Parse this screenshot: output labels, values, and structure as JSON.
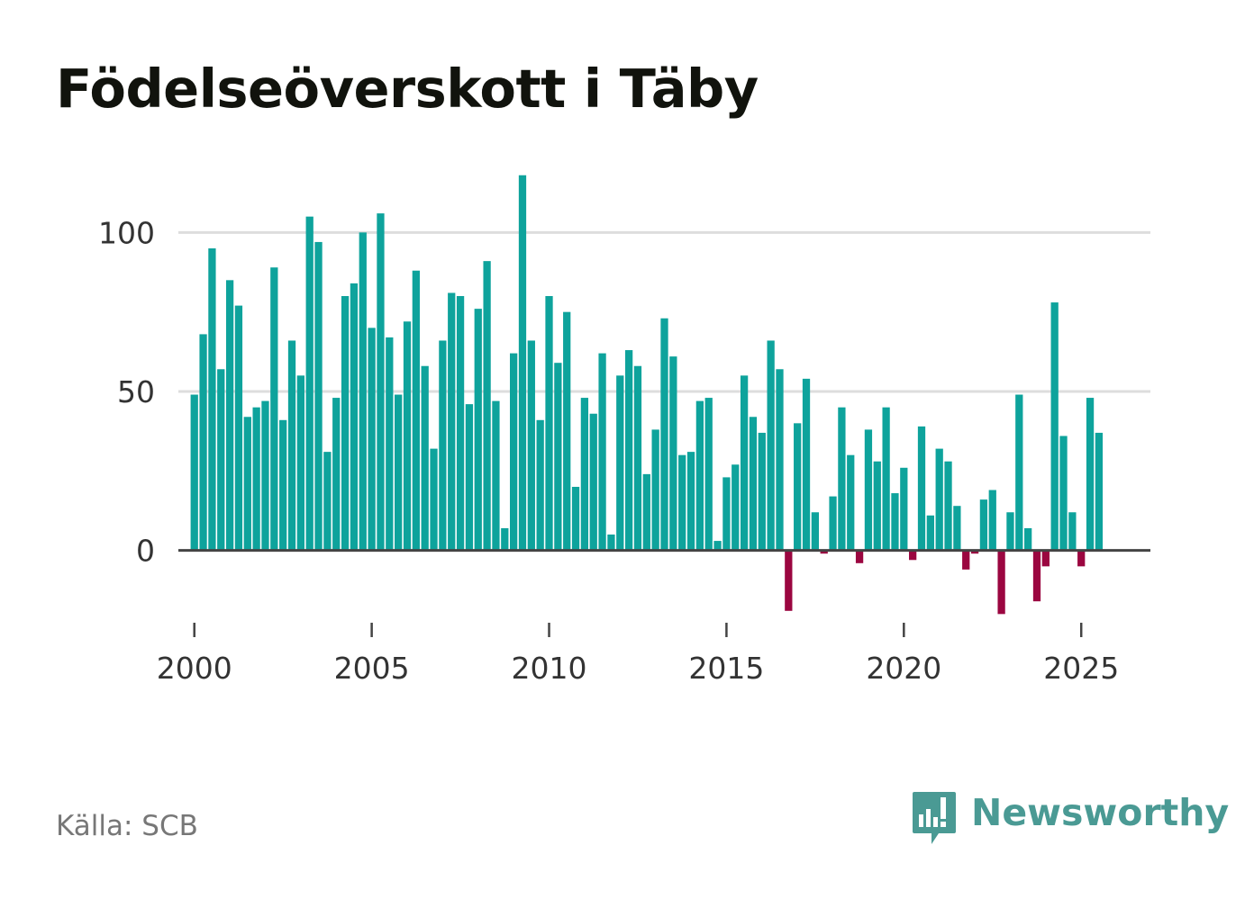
{
  "title": "Födelseöverskott i Täby",
  "source": "Källa: SCB",
  "brand": "Newsworthy",
  "colors": {
    "positive": "#0ea39c",
    "negative": "#9b0640",
    "grid": "#dddddd",
    "baseline": "#444444"
  },
  "chart_data": {
    "type": "bar",
    "title": "Födelseöverskott i Täby",
    "xlabel": "",
    "ylabel": "",
    "frequency": "quarterly",
    "x_start": 2000,
    "xlim": [
      1999.55,
      2026.95
    ],
    "ylim": [
      -25,
      125
    ],
    "y_ticks": [
      0,
      50,
      100
    ],
    "x_ticks": [
      2000,
      2005,
      2010,
      2015,
      2020,
      2025
    ],
    "grid": true,
    "values": [
      49,
      68,
      95,
      57,
      85,
      77,
      42,
      45,
      47,
      89,
      41,
      66,
      55,
      105,
      97,
      31,
      48,
      80,
      84,
      100,
      70,
      106,
      67,
      49,
      72,
      88,
      58,
      32,
      66,
      81,
      80,
      46,
      76,
      91,
      47,
      7,
      62,
      118,
      66,
      41,
      80,
      59,
      75,
      20,
      48,
      43,
      62,
      5,
      55,
      63,
      58,
      24,
      38,
      73,
      61,
      30,
      31,
      47,
      48,
      3,
      23,
      27,
      55,
      42,
      37,
      66,
      57,
      -19,
      40,
      54,
      12,
      -1,
      17,
      45,
      30,
      -4,
      38,
      28,
      45,
      18,
      26,
      -3,
      39,
      11,
      32,
      28,
      14,
      -6,
      -1,
      16,
      19,
      -20,
      12,
      49,
      7,
      -16,
      -5,
      78,
      36,
      12,
      -5,
      48,
      37
    ]
  }
}
